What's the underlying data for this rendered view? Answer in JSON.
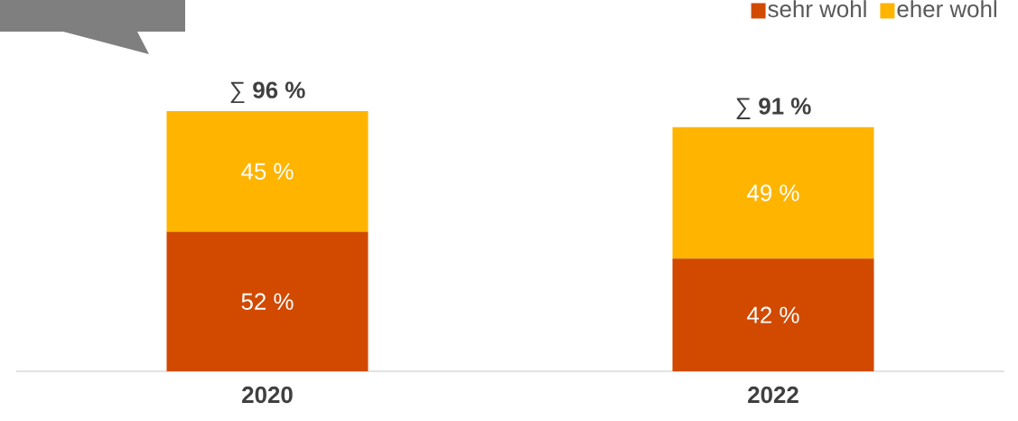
{
  "chart_data": {
    "type": "bar",
    "stacked": true,
    "categories": [
      "2020",
      "2022"
    ],
    "series": [
      {
        "name": "sehr wohl",
        "color": "#d14a00",
        "values": [
          52,
          42
        ],
        "value_labels": [
          "52 %",
          "42 %"
        ]
      },
      {
        "name": "eher wohl",
        "color": "#ffb400",
        "values": [
          45,
          49
        ],
        "value_labels": [
          "45 %",
          "49 %"
        ]
      }
    ],
    "totals": [
      "∑ **96 %**",
      "∑ **91 %**"
    ],
    "legend": "top right"
  }
}
